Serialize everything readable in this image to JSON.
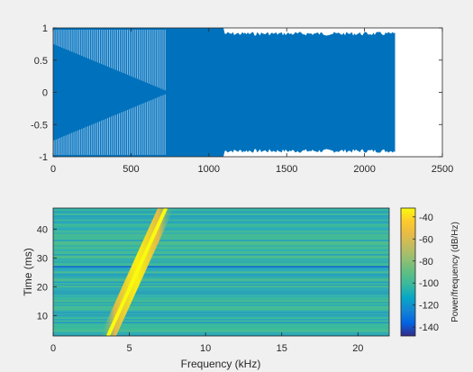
{
  "chart_data": [
    {
      "type": "line",
      "title": "",
      "xlabel": "",
      "ylabel": "",
      "xlim": [
        0,
        2500
      ],
      "ylim": [
        -1,
        1
      ],
      "xticks": [
        "0",
        "500",
        "1000",
        "1500",
        "2000",
        "2500"
      ],
      "yticks": [
        "1",
        "0.5",
        "0",
        "-0.5",
        "-1"
      ],
      "series": [
        {
          "x_range": [
            0,
            2200
          ],
          "amplitude": 1,
          "color": "#0072bd"
        }
      ],
      "grid": false
    },
    {
      "type": "heatmap",
      "title": "",
      "xlabel": "Frequency (kHz)",
      "ylabel": "Time (ms)",
      "xlim": [
        0,
        22.05
      ],
      "ylim": [
        2.9,
        47.3
      ],
      "xticks": [
        "0",
        "5",
        "10",
        "15",
        "20"
      ],
      "yticks": [
        "40",
        "30",
        "20",
        "10"
      ],
      "chirp_ridge": {
        "t": [
          2.9,
          47.3
        ],
        "f_khz": [
          3.6,
          7.4
        ]
      },
      "colorbar": {
        "label": "Power/frequency (dB/Hz)",
        "ticks": [
          "-40",
          "-60",
          "-80",
          "-100",
          "-120",
          "-140"
        ],
        "range": [
          -148,
          -32
        ],
        "colormap": "parula"
      }
    }
  ]
}
